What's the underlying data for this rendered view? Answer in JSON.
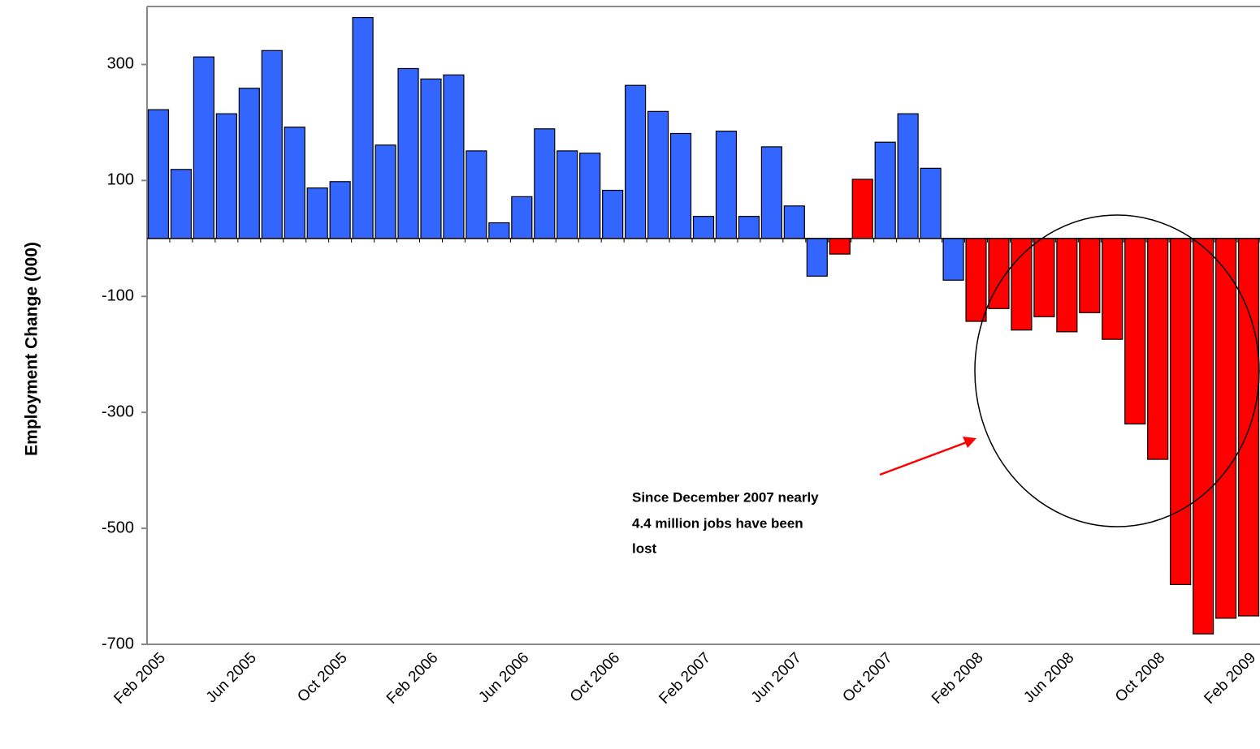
{
  "chart_data": {
    "type": "bar",
    "y_label": "Employment Change (000)",
    "categories": [
      "Feb 2005",
      null,
      null,
      null,
      "Jun 2005",
      null,
      null,
      null,
      "Oct 2005",
      null,
      null,
      null,
      "Feb 2006",
      null,
      null,
      null,
      "Jun 2006",
      null,
      null,
      null,
      "Oct 2006",
      null,
      null,
      null,
      "Feb 2007",
      null,
      null,
      null,
      "Jun 2007",
      null,
      null,
      null,
      "Oct 2007",
      null,
      null,
      null,
      "Feb 2008",
      null,
      null,
      null,
      "Jun 2008",
      null,
      null,
      null,
      "Oct 2008",
      null,
      null,
      null,
      "Feb 2009"
    ],
    "values": [
      222,
      119,
      313,
      215,
      259,
      324,
      192,
      87,
      98,
      381,
      161,
      293,
      275,
      282,
      151,
      27,
      72,
      189,
      151,
      147,
      83,
      264,
      219,
      181,
      38,
      185,
      38,
      158,
      56,
      -65,
      -27,
      102,
      166,
      215,
      121,
      -72,
      -143,
      -121,
      -158,
      -135,
      -161,
      -128,
      -174,
      -320,
      -381,
      -597,
      -682,
      -655,
      -651
    ],
    "colors": [
      "#3366ff",
      "#3366ff",
      "#3366ff",
      "#3366ff",
      "#3366ff",
      "#3366ff",
      "#3366ff",
      "#3366ff",
      "#3366ff",
      "#3366ff",
      "#3366ff",
      "#3366ff",
      "#3366ff",
      "#3366ff",
      "#3366ff",
      "#3366ff",
      "#3366ff",
      "#3366ff",
      "#3366ff",
      "#3366ff",
      "#3366ff",
      "#3366ff",
      "#3366ff",
      "#3366ff",
      "#3366ff",
      "#3366ff",
      "#3366ff",
      "#3366ff",
      "#3366ff",
      "#3366ff",
      "#ff0000",
      "#ff0000",
      "#3366ff",
      "#3366ff",
      "#3366ff",
      "#3366ff",
      "#ff0000",
      "#ff0000",
      "#ff0000",
      "#ff0000",
      "#ff0000",
      "#ff0000",
      "#ff0000",
      "#ff0000",
      "#ff0000",
      "#ff0000",
      "#ff0000",
      "#ff0000",
      "#ff0000"
    ],
    "ylim": [
      -700,
      400
    ],
    "yticks": [
      -700,
      -500,
      -300,
      -100,
      100,
      300
    ],
    "annotation": [
      "Since December 2007 nearly",
      "4.4 million jobs have been",
      "lost"
    ]
  }
}
